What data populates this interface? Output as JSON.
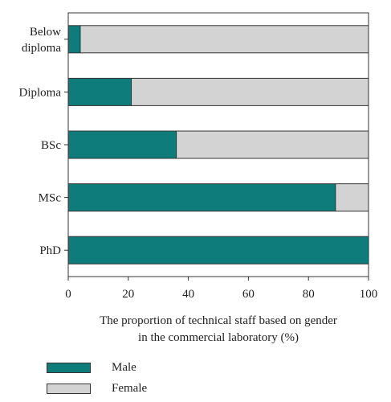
{
  "chart_data": {
    "type": "bar",
    "orientation": "horizontal",
    "stacked": true,
    "categories": [
      "Below diploma",
      "Diploma",
      "BSc",
      "MSc",
      "PhD"
    ],
    "category_label_lines": [
      [
        "Below",
        "diploma"
      ],
      [
        "Diploma"
      ],
      [
        "BSc"
      ],
      [
        "MSc"
      ],
      [
        "PhD"
      ]
    ],
    "series": [
      {
        "name": "Male",
        "values": [
          4,
          21,
          36,
          89,
          100
        ],
        "color": "#0e7c7b"
      },
      {
        "name": "Female",
        "values": [
          96,
          79,
          64,
          11,
          0
        ],
        "color": "#d3d3d3"
      }
    ],
    "xlim": [
      0,
      100
    ],
    "xticks": [
      "0",
      "20",
      "40",
      "60",
      "80",
      "100"
    ],
    "xlabel_lines": [
      "The proportion of technical staff based on gender",
      "in the commercial laboratory (%)"
    ],
    "ylabel": "",
    "title": "",
    "grid": false,
    "legend_position": "bottom-left"
  }
}
